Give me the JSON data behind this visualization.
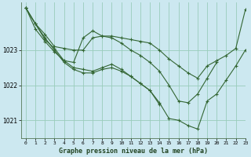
{
  "background_color": "#cce8f0",
  "grid_color": "#99ccbb",
  "line_color": "#336633",
  "title": "Graphe pression niveau de la mer (hPa)",
  "xlim": [
    -0.5,
    23
  ],
  "ylim": [
    1020.5,
    1024.35
  ],
  "yticks": [
    1021,
    1022,
    1023
  ],
  "xticks": [
    0,
    1,
    2,
    3,
    4,
    5,
    6,
    7,
    8,
    9,
    10,
    11,
    12,
    13,
    14,
    15,
    16,
    17,
    18,
    19,
    20,
    21,
    22,
    23
  ],
  "series": [
    {
      "x": [
        0,
        1,
        2,
        3,
        4,
        5,
        6,
        7,
        8,
        9,
        10,
        11,
        12,
        13,
        14,
        15,
        16,
        17,
        18,
        19,
        20,
        21,
        22,
        23
      ],
      "y": [
        1024.2,
        1023.75,
        1023.45,
        1023.1,
        1023.05,
        1023.0,
        1023.0,
        1023.35,
        1023.4,
        1023.4,
        1023.35,
        1023.3,
        1023.25,
        1023.2,
        1023.0,
        1022.75,
        1022.55,
        1022.35,
        1022.2,
        1022.55,
        1022.7,
        1022.85,
        1023.05,
        1024.15
      ]
    },
    {
      "x": [
        0,
        1,
        2,
        3,
        4,
        5,
        6,
        7,
        8,
        9,
        10,
        11,
        12,
        13,
        14,
        15,
        16,
        17,
        18,
        19,
        20
      ],
      "y": [
        1024.2,
        1023.75,
        1023.3,
        1023.05,
        1022.7,
        1022.65,
        1023.35,
        1023.55,
        1023.4,
        1023.35,
        1023.2,
        1023.0,
        1022.85,
        1022.65,
        1022.4,
        1022.0,
        1021.55,
        1021.5,
        1021.75,
        1022.2,
        1022.65
      ]
    },
    {
      "x": [
        0,
        1,
        2,
        3,
        4,
        5,
        6,
        7,
        8,
        9,
        10,
        11,
        12,
        13,
        14,
        15,
        16,
        17,
        18,
        19,
        20,
        21,
        22,
        23
      ],
      "y": [
        1024.2,
        1023.75,
        1023.35,
        1023.0,
        1022.65,
        1022.45,
        1022.35,
        1022.35,
        1022.45,
        1022.5,
        1022.4,
        1022.25,
        1022.05,
        1021.85,
        1021.5,
        1021.05,
        1021.0,
        1020.85,
        1020.75,
        1021.55,
        1021.75,
        1022.15,
        1022.55,
        1023.0
      ]
    },
    {
      "x": [
        0,
        1,
        2,
        3,
        4,
        5,
        6,
        7,
        8,
        9,
        10,
        11,
        12,
        13,
        14
      ],
      "y": [
        1024.2,
        1023.6,
        1023.25,
        1022.95,
        1022.7,
        1022.5,
        1022.45,
        1022.4,
        1022.5,
        1022.6,
        1022.45,
        1022.25,
        1022.05,
        1021.85,
        1021.45
      ]
    }
  ]
}
